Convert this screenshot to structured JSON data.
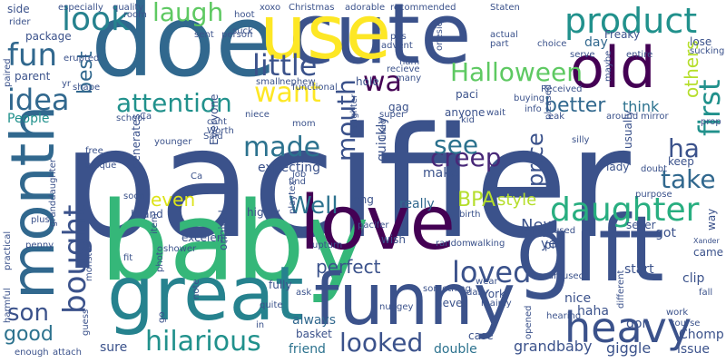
{
  "word_cloud": {
    "background": "#ffffff",
    "palette": [
      "#3b528b",
      "#2c728e",
      "#21918c",
      "#28ae80",
      "#5ec962",
      "#addc30",
      "#fde725",
      "#472d7b",
      "#440154"
    ],
    "words": [
      {
        "text": "pacifier",
        "color": "#3b528b"
      },
      {
        "text": "baby",
        "color": "#35b779"
      },
      {
        "text": "doe",
        "color": "#31688e"
      },
      {
        "text": "cute",
        "color": "#3b528b"
      },
      {
        "text": "gift",
        "color": "#3b528b"
      },
      {
        "text": "use",
        "color": "#fde725"
      },
      {
        "text": "love",
        "color": "#440154"
      },
      {
        "text": "month",
        "color": "#31688e"
      },
      {
        "text": "great",
        "color": "#26828e"
      },
      {
        "text": "funny",
        "color": "#3b528b"
      },
      {
        "text": "old",
        "color": "#440154"
      },
      {
        "text": "product",
        "color": "#21918c"
      },
      {
        "text": "heavy",
        "color": "#3b528b"
      },
      {
        "text": "daughter",
        "color": "#28ae80"
      },
      {
        "text": "look",
        "color": "#26828e"
      },
      {
        "text": "hilarious",
        "color": "#21918c"
      },
      {
        "text": "loved",
        "color": "#3b528b"
      },
      {
        "text": "bought",
        "color": "#3b528b"
      },
      {
        "text": "looked",
        "color": "#3b528b"
      },
      {
        "text": "made",
        "color": "#2c728e"
      },
      {
        "text": "fun",
        "color": "#31688e"
      },
      {
        "text": "idea",
        "color": "#31688e"
      },
      {
        "text": "attention",
        "color": "#21918c"
      },
      {
        "text": "little",
        "color": "#3b528b"
      },
      {
        "text": "Halloween",
        "color": "#5ec962"
      },
      {
        "text": "laugh",
        "color": "#5ec962"
      },
      {
        "text": "want",
        "color": "#fde725"
      },
      {
        "text": "wa",
        "color": "#440154"
      },
      {
        "text": "mouth",
        "color": "#3b528b"
      },
      {
        "text": "creep",
        "color": "#482878"
      },
      {
        "text": "see",
        "color": "#2c728e"
      },
      {
        "text": "take",
        "color": "#31688e"
      },
      {
        "text": "first",
        "color": "#21918c"
      },
      {
        "text": "ha",
        "color": "#3b528b"
      },
      {
        "text": "Well",
        "color": "#2c728e"
      },
      {
        "text": "better",
        "color": "#31688e"
      },
      {
        "text": "price",
        "color": "#3b528b"
      },
      {
        "text": "others",
        "color": "#b5de2b"
      },
      {
        "text": "best",
        "color": "#31688e"
      },
      {
        "text": "son",
        "color": "#3b528b"
      },
      {
        "text": "good",
        "color": "#2c728e"
      },
      {
        "text": "perfect",
        "color": "#3b528b"
      },
      {
        "text": "even",
        "color": "#dde318"
      },
      {
        "text": "BPA",
        "color": "#b5de2b"
      },
      {
        "text": "New",
        "color": "#3b528b"
      },
      {
        "text": "style",
        "color": "#b5de2b"
      },
      {
        "text": "think",
        "color": "#2c728e"
      },
      {
        "text": "People",
        "color": "#21918c"
      },
      {
        "text": "day",
        "color": "#31688e"
      },
      {
        "text": "really",
        "color": "#31688e"
      },
      {
        "text": "always",
        "color": "#31688e"
      },
      {
        "text": "grandbaby",
        "color": "#3b528b"
      },
      {
        "text": "giggle",
        "color": "#3b528b"
      },
      {
        "text": "issue",
        "color": "#3b528b"
      },
      {
        "text": "friend",
        "color": "#2c728e"
      },
      {
        "text": "double",
        "color": "#2c728e"
      },
      {
        "text": "sure",
        "color": "#3b528b"
      },
      {
        "text": "expecting",
        "color": "#3b528b"
      },
      {
        "text": "quickly",
        "color": "#3b528b"
      },
      {
        "text": "make",
        "color": "#3b528b"
      },
      {
        "text": "end",
        "color": "#3b528b"
      },
      {
        "text": "keep",
        "color": "#3b528b"
      },
      {
        "text": "got",
        "color": "#3b528b"
      },
      {
        "text": "yet",
        "color": "#3b528b"
      },
      {
        "text": "nice",
        "color": "#3b528b"
      },
      {
        "text": "haha",
        "color": "#3b528b"
      },
      {
        "text": "start",
        "color": "#3b528b"
      },
      {
        "text": "gon",
        "color": "#3b528b"
      },
      {
        "text": "clip",
        "color": "#3b528b"
      },
      {
        "text": "Chomp",
        "color": "#3b528b"
      },
      {
        "text": "lady",
        "color": "#3b528b"
      },
      {
        "text": "seller",
        "color": "#3b528b"
      },
      {
        "text": "paci",
        "color": "#3b528b"
      },
      {
        "text": "anyone",
        "color": "#3b528b"
      },
      {
        "text": "hole",
        "color": "#3b528b"
      },
      {
        "text": "gag",
        "color": "#3b528b"
      },
      {
        "text": "wish",
        "color": "#3b528b"
      },
      {
        "text": "fully",
        "color": "#3b528b"
      },
      {
        "text": "highly",
        "color": "#3b528b"
      },
      {
        "text": "long",
        "color": "#3b528b"
      },
      {
        "text": "pic",
        "color": "#3b528b"
      },
      {
        "text": "Freaky",
        "color": "#3b528b"
      },
      {
        "text": "lose",
        "color": "#3b528b"
      },
      {
        "text": "parent",
        "color": "#3b528b"
      },
      {
        "text": "package",
        "color": "#3b528b"
      },
      {
        "text": "side",
        "color": "#3b528b"
      },
      {
        "text": "Everyone",
        "color": "#3b528b"
      },
      {
        "text": "generates",
        "color": "#3b528b"
      },
      {
        "text": "usually",
        "color": "#3b528b"
      },
      {
        "text": "Island",
        "color": "#3b528b"
      },
      {
        "text": "excelent",
        "color": "#3b528b"
      },
      {
        "text": "original",
        "color": "#3b528b"
      },
      {
        "text": "York",
        "color": "#3b528b"
      },
      {
        "text": "never",
        "color": "#3b528b"
      },
      {
        "text": "basket",
        "color": "#3b528b"
      },
      {
        "text": "case",
        "color": "#3b528b"
      },
      {
        "text": "came",
        "color": "#3b528b"
      },
      {
        "text": "way",
        "color": "#3b528b"
      },
      {
        "text": "fall",
        "color": "#3b528b"
      },
      {
        "text": "Xander",
        "color": "#3b528b"
      },
      {
        "text": "Christmas",
        "color": "#3b528b"
      },
      {
        "text": "adorable",
        "color": "#3b528b"
      },
      {
        "text": "recommended",
        "color": "#3b528b"
      },
      {
        "text": "Staten",
        "color": "#3b528b"
      },
      {
        "text": "xoxo",
        "color": "#3b528b"
      },
      {
        "text": "pas",
        "color": "#3b528b"
      },
      {
        "text": "onesie",
        "color": "#3b528b"
      },
      {
        "text": "sent",
        "color": "#3b528b"
      },
      {
        "text": "suck",
        "color": "#3b528b"
      },
      {
        "text": "functional",
        "color": "#3b528b"
      },
      {
        "text": "Said",
        "color": "#3b528b"
      },
      {
        "text": "cant",
        "color": "#3b528b"
      },
      {
        "text": "free",
        "color": "#3b528b"
      },
      {
        "text": "unique",
        "color": "#3b528b"
      },
      {
        "text": "younger",
        "color": "#3b528b"
      },
      {
        "text": "nuggey",
        "color": "#3b528b"
      },
      {
        "text": "something",
        "color": "#3b528b"
      },
      {
        "text": "pacifer",
        "color": "#3b528b"
      },
      {
        "text": "random",
        "color": "#3b528b"
      },
      {
        "text": "walking",
        "color": "#3b528b"
      },
      {
        "text": "birth",
        "color": "#3b528b"
      },
      {
        "text": "upturn",
        "color": "#3b528b"
      },
      {
        "text": "quality",
        "color": "#3b528b"
      },
      {
        "text": "especially",
        "color": "#3b528b"
      },
      {
        "text": "rider",
        "color": "#3b528b"
      },
      {
        "text": "room",
        "color": "#3b528b"
      },
      {
        "text": "erupted",
        "color": "#3b528b"
      },
      {
        "text": "hoot",
        "color": "#3b528b"
      },
      {
        "text": "person",
        "color": "#3b528b"
      },
      {
        "text": "advent",
        "color": "#3b528b"
      },
      {
        "text": "recieve",
        "color": "#3b528b"
      },
      {
        "text": "ham",
        "color": "#3b528b"
      },
      {
        "text": "many",
        "color": "#3b528b"
      },
      {
        "text": "actual",
        "color": "#3b528b"
      },
      {
        "text": "part",
        "color": "#3b528b"
      },
      {
        "text": "serve",
        "color": "#3b528b"
      },
      {
        "text": "entire",
        "color": "#3b528b"
      },
      {
        "text": "sucking",
        "color": "#3b528b"
      },
      {
        "text": "choice",
        "color": "#3b528b"
      },
      {
        "text": "Received",
        "color": "#3b528b"
      },
      {
        "text": "buying",
        "color": "#3b528b"
      },
      {
        "text": "info",
        "color": "#3b528b"
      },
      {
        "text": "eak",
        "color": "#3b528b"
      },
      {
        "text": "around",
        "color": "#3b528b"
      },
      {
        "text": "mirror",
        "color": "#3b528b"
      },
      {
        "text": "kid",
        "color": "#3b528b"
      },
      {
        "text": "wait",
        "color": "#3b528b"
      },
      {
        "text": "super",
        "color": "#3b528b"
      },
      {
        "text": "nephew",
        "color": "#3b528b"
      },
      {
        "text": "small",
        "color": "#3b528b"
      },
      {
        "text": "shape",
        "color": "#3b528b"
      },
      {
        "text": "yr",
        "color": "#3b528b"
      },
      {
        "text": "school",
        "color": "#3b528b"
      },
      {
        "text": "niece",
        "color": "#3b528b"
      },
      {
        "text": "mom",
        "color": "#3b528b"
      },
      {
        "text": "Worth",
        "color": "#3b528b"
      },
      {
        "text": "Ca",
        "color": "#3b528b"
      },
      {
        "text": "liked",
        "color": "#3b528b"
      },
      {
        "text": "laughter",
        "color": "#3b528b"
      },
      {
        "text": "pleased",
        "color": "#3b528b"
      },
      {
        "text": "silly",
        "color": "#3b528b"
      },
      {
        "text": "doubt",
        "color": "#3b528b"
      },
      {
        "text": "purpose",
        "color": "#3b528b"
      },
      {
        "text": "prop",
        "color": "#3b528b"
      },
      {
        "text": "maybe",
        "color": "#3b528b"
      },
      {
        "text": "paired",
        "color": "#3b528b"
      },
      {
        "text": "practical",
        "color": "#3b528b"
      },
      {
        "text": "harmful",
        "color": "#3b528b"
      },
      {
        "text": "plus",
        "color": "#3b528b"
      },
      {
        "text": "penny",
        "color": "#3b528b"
      },
      {
        "text": "soon",
        "color": "#3b528b"
      },
      {
        "text": "granddaughter",
        "color": "#3b528b"
      },
      {
        "text": "monster",
        "color": "#3b528b"
      },
      {
        "text": "item",
        "color": "#3b528b"
      },
      {
        "text": "shower",
        "color": "#3b528b"
      },
      {
        "text": "fit",
        "color": "#3b528b"
      },
      {
        "text": "photo",
        "color": "#3b528b"
      },
      {
        "text": "note",
        "color": "#3b528b"
      },
      {
        "text": "guess",
        "color": "#3b528b"
      },
      {
        "text": "attach",
        "color": "#3b528b"
      },
      {
        "text": "enough",
        "color": "#3b528b"
      },
      {
        "text": "go",
        "color": "#3b528b"
      },
      {
        "text": "job",
        "color": "#3b528b"
      },
      {
        "text": "find",
        "color": "#3b528b"
      },
      {
        "text": "playtex",
        "color": "#3b528b"
      },
      {
        "text": "quite",
        "color": "#3b528b"
      },
      {
        "text": "ask",
        "color": "#3b528b"
      },
      {
        "text": "daily",
        "color": "#3b528b"
      },
      {
        "text": "wear",
        "color": "#3b528b"
      },
      {
        "text": "mainly",
        "color": "#3b528b"
      },
      {
        "text": "amused",
        "color": "#3b528b"
      },
      {
        "text": "used",
        "color": "#3b528b"
      },
      {
        "text": "different",
        "color": "#3b528b"
      },
      {
        "text": "hearing",
        "color": "#3b528b"
      },
      {
        "text": "opened",
        "color": "#3b528b"
      },
      {
        "text": "work",
        "color": "#3b528b"
      },
      {
        "text": "course",
        "color": "#3b528b"
      },
      {
        "text": "in",
        "color": "#3b528b"
      },
      {
        "text": "Ca",
        "color": "#3b528b"
      }
    ]
  }
}
